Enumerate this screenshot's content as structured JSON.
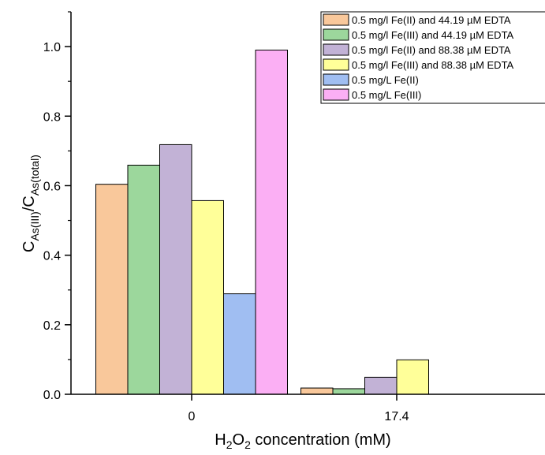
{
  "chart_data": {
    "type": "bar",
    "categories": [
      "0",
      "17.4"
    ],
    "series": [
      {
        "name": "0.5 mg/l Fe(II) and 44.19 µM EDTA",
        "color": "#f9c89b",
        "values": [
          0.604,
          0.018
        ]
      },
      {
        "name": "0.5 mg/l Fe(III) and 44.19 µM EDTA",
        "color": "#9cd79c",
        "values": [
          0.659,
          0.016
        ]
      },
      {
        "name": "0.5 mg/l Fe(II) and 88.38 µM EDTA",
        "color": "#c2b2d6",
        "values": [
          0.718,
          0.049
        ]
      },
      {
        "name": "0.5 mg/l Fe(III) and 88.38 µM EDTA",
        "color": "#ffff99",
        "values": [
          0.557,
          0.099
        ]
      },
      {
        "name": "0.5 mg/L Fe(II)",
        "color": "#a0bef2",
        "values": [
          0.289,
          null
        ]
      },
      {
        "name": "0.5 mg/L Fe(III)",
        "color": "#fbaff4",
        "values": [
          0.99,
          null
        ]
      }
    ],
    "xlabel": {
      "main": "H",
      "sub1": "2",
      "mid": "O",
      "sub2": "2",
      "tail": " concentration (mM)"
    },
    "ylabel": {
      "c1": "C",
      "sub1": "As(III)",
      "slash": "/C",
      "sub2": "As(total)"
    },
    "ylim": [
      0,
      1.1
    ],
    "yticks": [
      0.0,
      0.2,
      0.4,
      0.6,
      0.8,
      1.0
    ],
    "ytick_labels": [
      "0.0",
      "0.2",
      "0.4",
      "0.6",
      "0.8",
      "1.0"
    ],
    "legend_position": "top-right",
    "grid": false
  }
}
